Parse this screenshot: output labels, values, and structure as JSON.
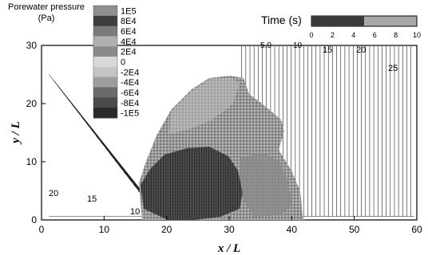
{
  "chart_data": {
    "type": "contour",
    "xlabel": "x / L",
    "ylabel": "y / L",
    "xlim": [
      0,
      60
    ],
    "ylim": [
      0,
      30
    ],
    "x_ticks": [
      0,
      10,
      20,
      30,
      40,
      50,
      60
    ],
    "y_ticks": [
      0,
      10,
      20,
      30
    ],
    "legend": {
      "title": "Porewater pressure (Pa)",
      "levels": [
        "1E5",
        "8E4",
        "6E4",
        "4E4",
        "2E4",
        "0",
        "-2E4",
        "-4E4",
        "-6E4",
        "-8E4",
        "-1E5"
      ],
      "colors": [
        "#8f8f8f",
        "#3c3c3c",
        "#7a7a7a",
        "#b0b0b0",
        "#8a8a8a",
        "#d8d8d8",
        "#c4c4c4",
        "#9e9e9e",
        "#6a6a6a",
        "#4a4a4a",
        "#2a2a2a"
      ]
    },
    "time_bar": {
      "title": "Time (s)",
      "ticks": [
        "0",
        "2",
        "4",
        "6",
        "8",
        "10"
      ],
      "range": [
        0,
        10
      ],
      "current": 5,
      "fill_color": "#3a3a3a",
      "rest_color": "#a8a8a8"
    },
    "left_contour_labels": [
      "20",
      "15",
      "10"
    ],
    "right_contour_labels": [
      "5.0",
      "10",
      "15",
      "20",
      "25"
    ]
  }
}
